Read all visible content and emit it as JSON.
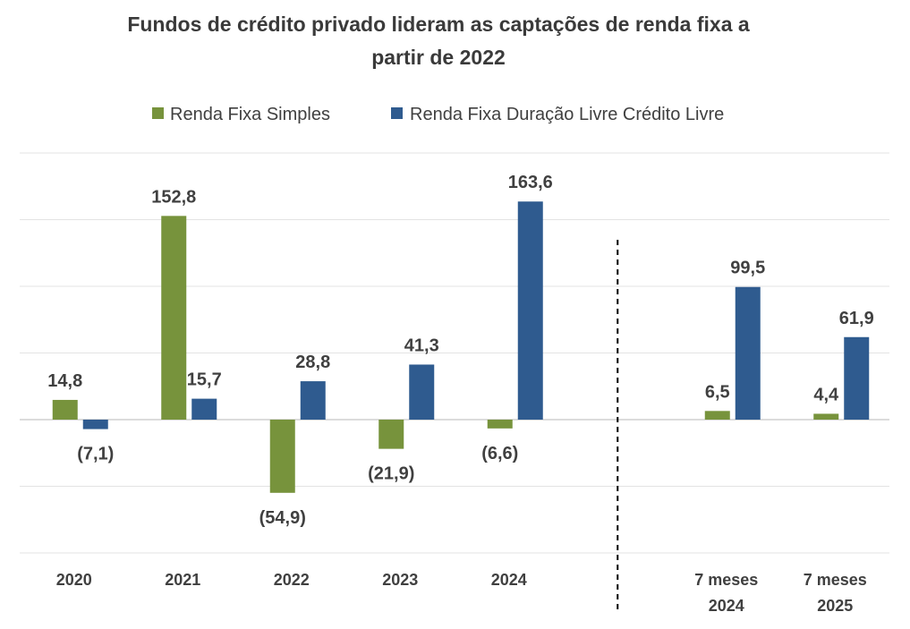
{
  "chart_data": {
    "type": "bar",
    "title_line1": "Fundos de crédito privado lideram as captações de renda fixa a",
    "title_line2": "partir de 2022",
    "categories": [
      [
        "2020"
      ],
      [
        "2021"
      ],
      [
        "2022"
      ],
      [
        "2023"
      ],
      [
        "2024"
      ],
      [],
      [
        "7 meses",
        "2024"
      ],
      [
        "7 meses",
        "2025"
      ]
    ],
    "series": [
      {
        "name": "Renda Fixa Simples",
        "color": "#77933c",
        "values": [
          14.8,
          152.8,
          -54.9,
          -21.9,
          -6.6,
          null,
          6.5,
          4.4
        ],
        "labels": [
          "14,8",
          "152,8",
          "(54,9)",
          "(21,9)",
          "(6,6)",
          "",
          "6,5",
          "4,4"
        ]
      },
      {
        "name": "Renda Fixa Duração Livre Crédito Livre",
        "color": "#2f5b8f",
        "values": [
          -7.1,
          15.7,
          28.8,
          41.3,
          163.6,
          null,
          99.5,
          61.9
        ],
        "labels": [
          "(7,1)",
          "15,7",
          "28,8",
          "41,3",
          "163,6",
          "",
          "99,5",
          "61,9"
        ]
      }
    ],
    "ylim": [
      -100,
      200
    ],
    "grid_step": 50,
    "legend_position": "top-center",
    "grid": true,
    "separator_after_index": 5
  }
}
